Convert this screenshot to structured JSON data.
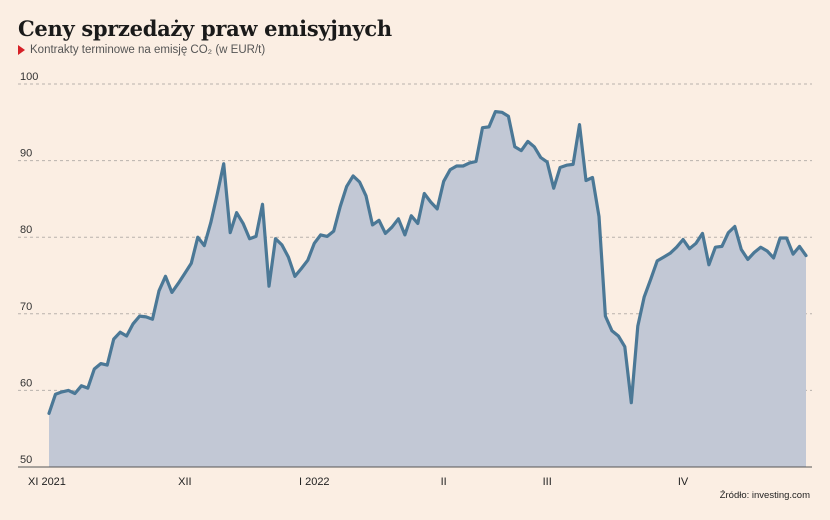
{
  "title": "Ceny sprzedaży praw emisyjnych",
  "subtitle": "Kontrakty terminowe na emisję CO₂ (w EUR/t)",
  "source": "Źródło: investing.com",
  "chart_data": {
    "type": "area",
    "title": "Ceny sprzedaży praw emisyjnych",
    "subtitle": "Kontrakty terminowe na emisję CO₂ (w EUR/t)",
    "ylim": [
      50,
      100
    ],
    "yticks": [
      50,
      60,
      70,
      80,
      90,
      100
    ],
    "xtick_labels": [
      "XI 2021",
      "XII",
      "I 2022",
      "II",
      "III",
      "IV"
    ],
    "xtick_index": [
      0,
      21,
      41,
      61,
      77,
      98
    ],
    "grid": true,
    "line_color": "#4b7896",
    "fill_color": "#c2c8d5",
    "values": [
      57.0,
      59.5,
      59.8,
      60.0,
      59.6,
      60.6,
      60.3,
      62.8,
      63.5,
      63.3,
      66.7,
      67.6,
      67.1,
      68.7,
      69.7,
      69.6,
      69.3,
      73.0,
      74.9,
      72.8,
      74.0,
      75.3,
      76.6,
      80.0,
      78.9,
      81.9,
      85.6,
      89.6,
      80.6,
      83.2,
      81.8,
      79.8,
      80.1,
      84.3,
      73.6,
      79.8,
      79.0,
      77.4,
      74.9,
      75.9,
      77.0,
      79.2,
      80.3,
      80.1,
      80.8,
      84.0,
      86.6,
      88.0,
      87.2,
      85.4,
      81.6,
      82.2,
      80.5,
      81.3,
      82.4,
      80.3,
      82.8,
      81.8,
      85.7,
      84.6,
      83.7,
      87.3,
      88.8,
      89.3,
      89.3,
      89.7,
      89.9,
      94.3,
      94.4,
      96.4,
      96.3,
      95.8,
      91.8,
      91.3,
      92.5,
      91.8,
      90.4,
      89.8,
      86.4,
      89.1,
      89.4,
      89.5,
      94.7,
      87.4,
      87.8,
      82.7,
      69.7,
      67.8,
      67.1,
      65.7,
      58.4,
      68.4,
      72.2,
      74.5,
      76.9,
      77.4,
      77.9,
      78.7,
      79.7,
      78.5,
      79.2,
      80.5,
      76.4,
      78.7,
      78.8,
      80.6,
      81.4,
      78.4,
      77.1,
      78.0,
      78.7,
      78.2,
      77.3,
      79.9,
      79.9,
      77.8,
      78.8,
      77.6
    ]
  }
}
